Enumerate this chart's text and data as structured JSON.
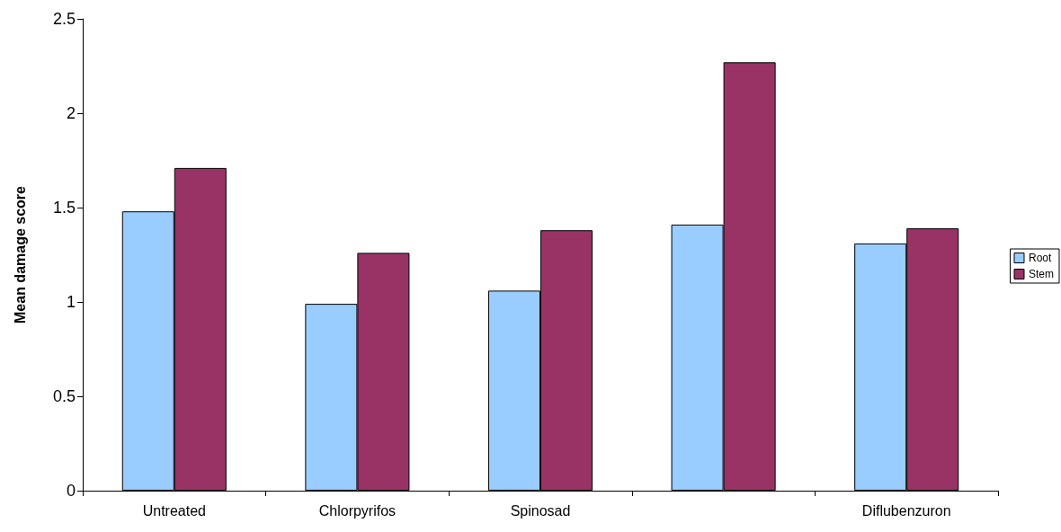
{
  "chart_data": {
    "type": "bar",
    "ylabel": "Mean damage score",
    "categories": [
      "Untreated",
      "Chlorpyrifos",
      "Spinosad",
      null,
      "Diflubenzuron"
    ],
    "series": [
      {
        "name": "Root",
        "color": "#99ccff",
        "values": [
          1.48,
          0.99,
          1.06,
          1.41,
          1.31
        ]
      },
      {
        "name": "Stem",
        "color": "#993366",
        "values": [
          1.71,
          1.26,
          1.38,
          2.27,
          1.39
        ]
      }
    ],
    "ylim": [
      0,
      2.5
    ],
    "yticks": [
      0,
      0.5,
      1,
      1.5,
      2,
      2.5
    ],
    "grid": false,
    "legend": "right"
  }
}
